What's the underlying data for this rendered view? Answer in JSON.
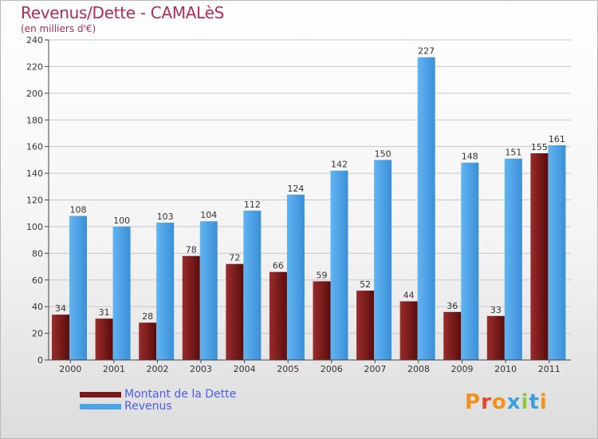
{
  "header": {
    "title": "Revenus/Dette - CAMALèS",
    "subtitle": "(en milliers d'€)"
  },
  "logo": {
    "text": "Proxiti",
    "letter_colors": [
      "#f0921c",
      "#e8452c",
      "#f0921c",
      "#3aa0dc",
      "#8dc63f",
      "#3aa0dc",
      "#f0921c"
    ]
  },
  "colors": {
    "dette": "#7a1a1a",
    "revenus": "#4aa3e6",
    "axis": "#444444",
    "grid": "#c8c8c8",
    "legend_text": "#4a5cf0"
  },
  "chart_data": {
    "type": "bar",
    "title": "Revenus/Dette - CAMALèS",
    "ylabel": "(en milliers d'€)",
    "xlabel": "",
    "categories": [
      "2000",
      "2001",
      "2002",
      "2003",
      "2004",
      "2005",
      "2006",
      "2007",
      "2008",
      "2009",
      "2010",
      "2011"
    ],
    "series": [
      {
        "name": "Montant de la Dette",
        "values": [
          34,
          31,
          28,
          78,
          72,
          66,
          59,
          52,
          44,
          36,
          33,
          155
        ]
      },
      {
        "name": "Revenus",
        "values": [
          108,
          100,
          103,
          104,
          112,
          124,
          142,
          150,
          227,
          148,
          151,
          161
        ]
      }
    ],
    "ylim": [
      0,
      240
    ],
    "yticks": [
      0,
      20,
      40,
      60,
      80,
      100,
      120,
      140,
      160,
      180,
      200,
      220,
      240
    ],
    "grid": true,
    "legend_position": "bottom-left",
    "data_labels": true
  }
}
